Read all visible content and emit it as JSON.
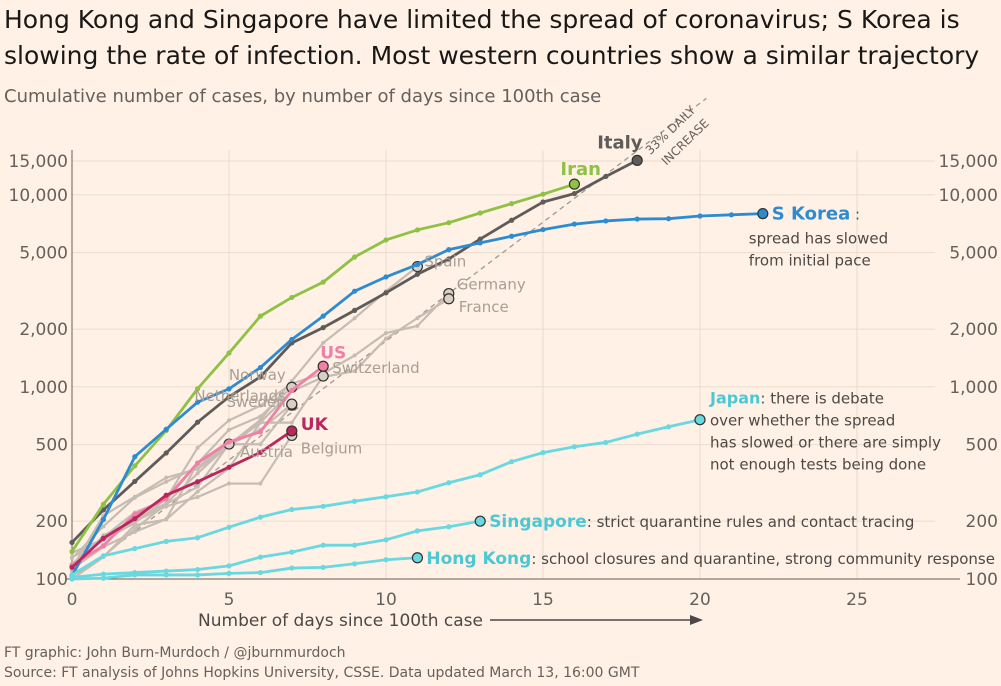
{
  "title": "Hong Kong and Singapore have limited the spread of coronavirus; S Korea is slowing the rate of infection. Most western countries show a similar trajectory",
  "subtitle": "Cumulative number of cases, by number of days since 100th case",
  "footer": {
    "credit": "FT graphic: John Burn-Murdoch / @jburnmurdoch",
    "source": "Source: FT analysis of Johns Hopkins University, CSSE. Data updated March 13, 16:00 GMT"
  },
  "colors": {
    "background": "#fff1e5",
    "grid": "#e9dccf",
    "italy": "#5e5b59",
    "iran": "#8fc145",
    "skorea": "#2d8bd1",
    "us": "#f080a8",
    "uk": "#b8285e",
    "teal": "#69d8e0",
    "others": "#c6bcb3",
    "reference": "#9e9994"
  },
  "chart_data": {
    "type": "line",
    "title": "Hong Kong and Singapore have limited the spread of coronavirus; S Korea is slowing the rate of infection. Most western countries show a similar trajectory",
    "subtitle": "Cumulative number of cases, by number of days since 100th case",
    "xlabel": "Number of days since 100th case",
    "ylabel": "",
    "xlim": [
      0,
      29
    ],
    "ylim": [
      100,
      20000
    ],
    "yscale": "log",
    "x_ticks": [
      0,
      5,
      10,
      15,
      20,
      25
    ],
    "y_ticks": [
      100,
      200,
      500,
      1000,
      2000,
      5000,
      10000,
      15000
    ],
    "y_tick_labels": [
      "100",
      "200",
      "500",
      "1,000",
      "2,000",
      "5,000",
      "10,000",
      "15,000"
    ],
    "grid": true,
    "reference_line": {
      "label": "33% DAILY INCREASE",
      "start_value": 100,
      "daily_growth": 0.33
    },
    "series": [
      {
        "name": "Italy",
        "highlight": true,
        "color_key": "italy",
        "values": [
          155,
          229,
          322,
          453,
          655,
          888,
          1128,
          1694,
          2036,
          2502,
          3089,
          3858,
          4636,
          5883,
          7375,
          9172,
          10149,
          12462,
          15113
        ]
      },
      {
        "name": "Iran",
        "highlight": true,
        "color_key": "iran",
        "values": [
          139,
          245,
          388,
          593,
          978,
          1501,
          2336,
          2922,
          3513,
          4747,
          5823,
          6566,
          7161,
          8042,
          9000,
          10075,
          11364
        ]
      },
      {
        "name": "S Korea",
        "highlight": true,
        "color_key": "skorea",
        "values": [
          104,
          204,
          433,
          602,
          833,
          977,
          1261,
          1766,
          2337,
          3150,
          3736,
          4335,
          5186,
          5621,
          6088,
          6593,
          7041,
          7313,
          7478,
          7513,
          7755,
          7869,
          7979
        ]
      },
      {
        "name": "Spain",
        "color_key": "others",
        "values": [
          120,
          165,
          222,
          259,
          400,
          500,
          673,
          1073,
          1695,
          2277,
          3146,
          4231
        ]
      },
      {
        "name": "Germany",
        "color_key": "others",
        "values": [
          130,
          159,
          196,
          262,
          482,
          670,
          799,
          1040,
          1176,
          1457,
          1908,
          2078,
          3062
        ]
      },
      {
        "name": "France",
        "color_key": "others",
        "values": [
          100,
          130,
          191,
          204,
          285,
          377,
          653,
          949,
          1126,
          1209,
          1784,
          2281,
          2876
        ]
      },
      {
        "name": "US",
        "highlight": true,
        "color_key": "us",
        "values": [
          118,
          149,
          217,
          262,
          402,
          518,
          583,
          959,
          1281
        ]
      },
      {
        "name": "Switzerland",
        "color_key": "others",
        "values": [
          114,
          214,
          268,
          337,
          374,
          491,
          652,
          652,
          1139
        ]
      },
      {
        "name": "Norway",
        "color_key": "others",
        "values": [
          113,
          147,
          176,
          205,
          400,
          598,
          702,
          996
        ]
      },
      {
        "name": "Netherlands",
        "color_key": "others",
        "values": [
          128,
          188,
          265,
          321,
          382,
          503,
          503,
          804
        ]
      },
      {
        "name": "Sweden",
        "color_key": "others",
        "values": [
          137,
          161,
          203,
          248,
          355,
          500,
          599,
          814
        ]
      },
      {
        "name": "UK",
        "highlight": true,
        "color_key": "uk",
        "values": [
          115,
          163,
          206,
          273,
          321,
          382,
          456,
          590
        ]
      },
      {
        "name": "Belgium",
        "color_key": "others",
        "values": [
          109,
          169,
          200,
          239,
          267,
          314,
          314,
          559
        ]
      },
      {
        "name": "Austria",
        "color_key": "others",
        "values": [
          104,
          131,
          182,
          246,
          302,
          504
        ]
      },
      {
        "name": "Japan",
        "highlight": true,
        "color_key": "teal",
        "values": [
          105,
          132,
          144,
          157,
          164,
          186,
          210,
          230,
          239,
          254,
          268,
          284,
          317,
          349,
          408,
          455,
          488,
          514,
          568,
          620,
          675
        ]
      },
      {
        "name": "Singapore",
        "highlight": true,
        "color_key": "teal",
        "values": [
          102,
          106,
          108,
          110,
          112,
          117,
          130,
          138,
          150,
          150,
          160,
          178,
          187,
          200
        ]
      },
      {
        "name": "Hong Kong",
        "highlight": true,
        "color_key": "teal",
        "values": [
          100,
          101,
          105,
          105,
          105,
          107,
          108,
          114,
          115,
          120,
          126,
          129
        ]
      }
    ],
    "annotations": [
      {
        "series": "S Korea",
        "text": "spread has slowed from initial pace"
      },
      {
        "series": "Japan",
        "text": "there is debate over whether the spread has slowed or there are simply not enough tests being done"
      },
      {
        "series": "Singapore",
        "text": "strict quarantine rules and contact tracing"
      },
      {
        "series": "Hong Kong",
        "text": "school closures and quarantine, strong community response"
      }
    ]
  }
}
